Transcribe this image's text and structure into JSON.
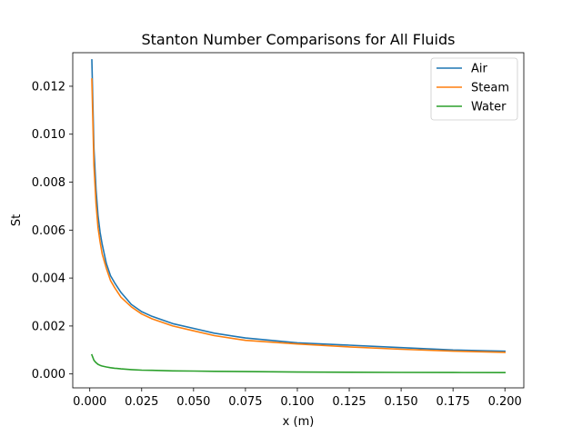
{
  "chart_data": {
    "type": "line",
    "title": "Stanton Number Comparisons for All Fluids",
    "xlabel": "x (m)",
    "ylabel": "St",
    "xlim": [
      -0.0082,
      0.2091
    ],
    "ylim": [
      -0.00058,
      0.0134
    ],
    "xticks": [
      0.0,
      0.025,
      0.05,
      0.075,
      0.1,
      0.125,
      0.15,
      0.175,
      0.2
    ],
    "xtick_labels": [
      "0.000",
      "0.025",
      "0.050",
      "0.075",
      "0.100",
      "0.125",
      "0.150",
      "0.175",
      "0.200"
    ],
    "yticks": [
      0.0,
      0.002,
      0.004,
      0.006,
      0.008,
      0.01,
      0.012
    ],
    "ytick_labels": [
      "0.000",
      "0.002",
      "0.004",
      "0.006",
      "0.008",
      "0.010",
      "0.012"
    ],
    "grid": false,
    "legend_position": "top-right",
    "series": [
      {
        "name": "Air",
        "color": "#1f77b4",
        "x": [
          0.001,
          0.002,
          0.003,
          0.004,
          0.005,
          0.006,
          0.008,
          0.01,
          0.012,
          0.015,
          0.02,
          0.025,
          0.03,
          0.04,
          0.05,
          0.06,
          0.075,
          0.1,
          0.125,
          0.15,
          0.175,
          0.2
        ],
        "y": [
          0.0131,
          0.0094,
          0.0077,
          0.0066,
          0.0059,
          0.0054,
          0.0046,
          0.0041,
          0.0038,
          0.0034,
          0.0029,
          0.0026,
          0.0024,
          0.0021,
          0.0019,
          0.0017,
          0.0015,
          0.0013,
          0.0012,
          0.0011,
          0.001,
          0.00095
        ]
      },
      {
        "name": "Steam",
        "color": "#ff7f0e",
        "x": [
          0.001,
          0.002,
          0.003,
          0.004,
          0.005,
          0.006,
          0.008,
          0.01,
          0.012,
          0.015,
          0.02,
          0.025,
          0.03,
          0.04,
          0.05,
          0.06,
          0.075,
          0.1,
          0.125,
          0.15,
          0.175,
          0.2
        ],
        "y": [
          0.0123,
          0.0087,
          0.0071,
          0.0061,
          0.0055,
          0.005,
          0.0044,
          0.0039,
          0.0036,
          0.0032,
          0.0028,
          0.0025,
          0.0023,
          0.002,
          0.0018,
          0.0016,
          0.0014,
          0.00125,
          0.00113,
          0.00103,
          0.00095,
          0.0009
        ]
      },
      {
        "name": "Water",
        "color": "#2ca02c",
        "x": [
          0.001,
          0.002,
          0.003,
          0.004,
          0.005,
          0.006,
          0.008,
          0.01,
          0.012,
          0.015,
          0.02,
          0.025,
          0.03,
          0.04,
          0.05,
          0.06,
          0.075,
          0.1,
          0.125,
          0.15,
          0.175,
          0.2
        ],
        "y": [
          0.0008,
          0.00057,
          0.00047,
          0.0004,
          0.00036,
          0.00033,
          0.00029,
          0.00026,
          0.00024,
          0.00021,
          0.00018,
          0.00016,
          0.00015,
          0.00013,
          0.00012,
          0.00011,
          0.0001,
          8e-05,
          7e-05,
          6.5e-05,
          6e-05,
          5.7e-05
        ]
      }
    ]
  }
}
